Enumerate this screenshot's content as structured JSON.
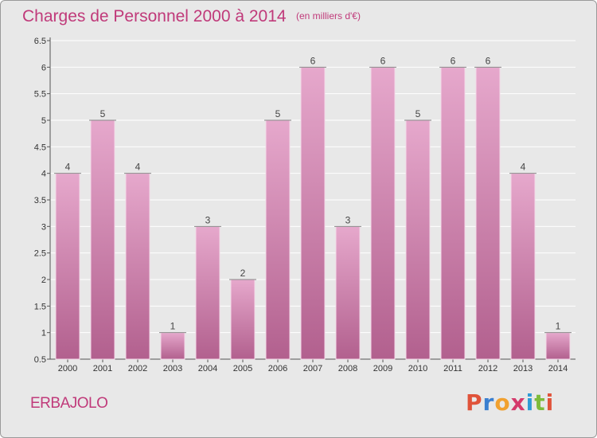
{
  "header": {
    "title": "Charges de Personnel 2000 à 2014",
    "subtitle": "(en milliers d'€)"
  },
  "footer": {
    "commune": "ERBAJOLO",
    "logo": [
      "P",
      "r",
      "o",
      "x",
      "i",
      "t",
      "i"
    ]
  },
  "colors": {
    "bar_top": "#e6a8cc",
    "bar_bottom": "#b2608e",
    "title": "#c03a7a",
    "logo": [
      "#e0533a",
      "#3a7fd0",
      "#f1a12f",
      "#d43a6c",
      "#2e9bd6",
      "#7dbb3b",
      "#e0533a"
    ]
  },
  "chart_data": {
    "type": "bar",
    "categories": [
      "2000",
      "2001",
      "2002",
      "2003",
      "2004",
      "2005",
      "2006",
      "2007",
      "2008",
      "2009",
      "2010",
      "2011",
      "2012",
      "2013",
      "2014"
    ],
    "values": [
      4,
      5,
      4,
      1,
      3,
      2,
      5,
      6,
      3,
      6,
      5,
      6,
      6,
      4,
      1
    ],
    "data_labels": [
      "4",
      "5",
      "4",
      "1",
      "3",
      "2",
      "5",
      "6",
      "3",
      "6",
      "5",
      "6",
      "6",
      "4",
      "1"
    ],
    "yticks": [
      "0.5",
      "1",
      "1.5",
      "2",
      "2.5",
      "3",
      "3.5",
      "4",
      "4.5",
      "5",
      "5.5",
      "6",
      "6.5"
    ],
    "ylim": [
      0.5,
      6.5
    ],
    "grid": true
  }
}
